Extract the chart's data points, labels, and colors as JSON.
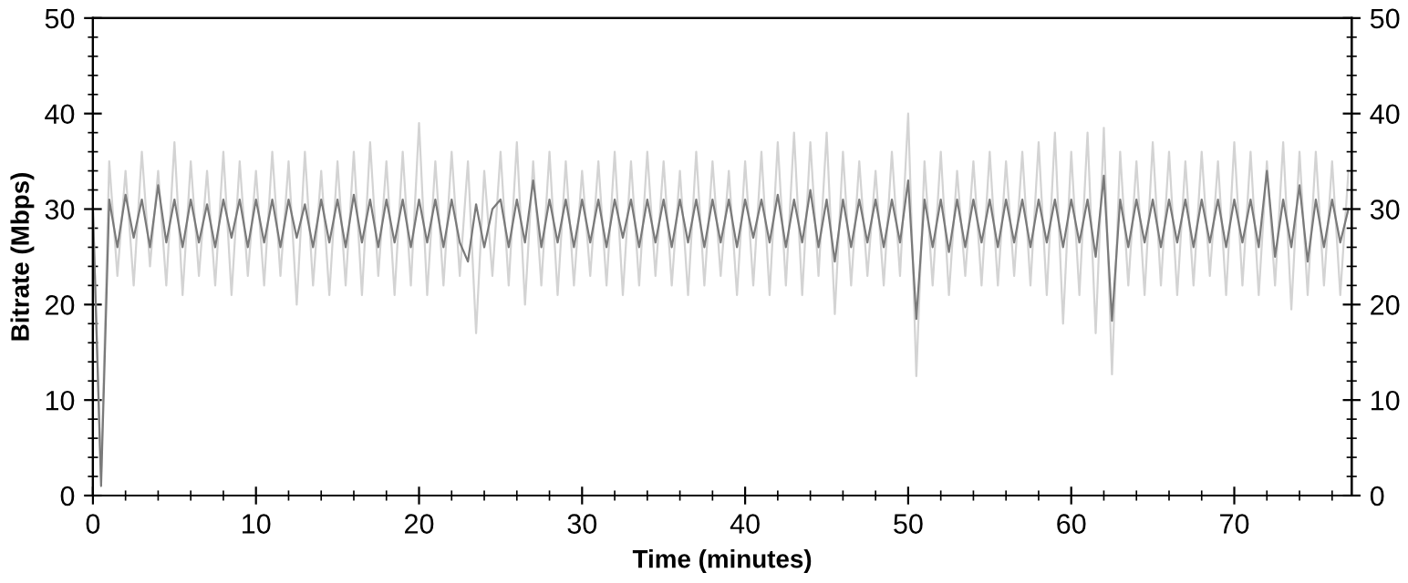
{
  "chart_data": {
    "type": "line",
    "xlabel": "Time (minutes)",
    "ylabel": "Bitrate (Mbps)",
    "x": [
      0,
      0.5,
      1,
      1.5,
      2,
      2.5,
      3,
      3.5,
      4,
      4.5,
      5,
      5.5,
      6,
      6.5,
      7,
      7.5,
      8,
      8.5,
      9,
      9.5,
      10,
      10.5,
      11,
      11.5,
      12,
      12.5,
      13,
      13.5,
      14,
      14.5,
      15,
      15.5,
      16,
      16.5,
      17,
      17.5,
      18,
      18.5,
      19,
      19.5,
      20,
      20.5,
      21,
      21.5,
      22,
      22.5,
      23,
      23.5,
      24,
      24.5,
      25,
      25.5,
      26,
      26.5,
      27,
      27.5,
      28,
      28.5,
      29,
      29.5,
      30,
      30.5,
      31,
      31.5,
      32,
      32.5,
      33,
      33.5,
      34,
      34.5,
      35,
      35.5,
      36,
      36.5,
      37,
      37.5,
      38,
      38.5,
      39,
      39.5,
      40,
      40.5,
      41,
      41.5,
      42,
      42.5,
      43,
      43.5,
      44,
      44.5,
      45,
      45.5,
      46,
      46.5,
      47,
      47.5,
      48,
      48.5,
      49,
      49.5,
      50,
      50.5,
      51,
      51.5,
      52,
      52.5,
      53,
      53.5,
      54,
      54.5,
      55,
      55.5,
      56,
      56.5,
      57,
      57.5,
      58,
      58.5,
      59,
      59.5,
      60,
      60.5,
      61,
      61.5,
      62,
      62.5,
      63,
      63.5,
      64,
      64.5,
      65,
      65.5,
      66,
      66.5,
      67,
      67.5,
      68,
      68.5,
      69,
      69.5,
      70,
      70.5,
      71,
      71.5,
      72,
      72.5,
      73,
      73.5,
      74,
      74.5,
      75,
      75.5,
      76,
      76.5,
      77
    ],
    "series": [
      {
        "color": "#d3d3d3",
        "values": [
          30,
          2,
          35,
          23,
          34,
          22,
          36,
          24,
          34,
          22,
          37,
          21,
          35,
          23,
          34,
          22,
          36,
          21,
          35,
          23,
          34,
          22,
          36,
          23,
          35,
          20,
          36,
          22,
          34,
          21,
          35,
          22,
          36,
          21,
          37,
          23,
          35,
          21,
          36,
          22,
          39,
          21,
          35,
          22,
          36,
          23,
          35,
          17,
          34,
          23,
          36,
          22,
          37,
          20,
          35,
          22,
          36,
          21,
          35,
          22,
          34,
          23,
          35,
          22,
          36,
          21,
          35,
          22,
          36,
          23,
          35,
          22,
          34,
          21,
          36,
          22,
          35,
          23,
          34,
          21,
          35,
          22,
          36,
          21,
          37,
          22,
          38,
          21,
          37,
          23,
          38,
          19,
          36,
          22,
          35,
          23,
          34,
          22,
          36,
          23,
          40,
          12.5,
          35,
          22,
          36,
          21,
          34,
          23,
          35,
          22,
          36,
          22,
          35,
          23,
          36,
          22,
          37,
          21,
          38,
          18,
          36,
          21,
          38,
          17,
          38.5,
          12.7,
          36,
          22,
          35,
          21,
          37,
          22,
          36,
          21,
          35,
          22,
          36,
          23,
          35,
          21,
          37,
          22,
          36,
          21,
          35,
          22,
          37,
          19.5,
          36,
          21,
          36,
          22,
          35,
          21,
          34
        ]
      },
      {
        "color": "#7a7a7a",
        "values": [
          30,
          1,
          31,
          26,
          31.5,
          27,
          31,
          26,
          32.5,
          26.5,
          31,
          26,
          31,
          26.5,
          30.5,
          26,
          31,
          27,
          31,
          26,
          31,
          26.5,
          31,
          26,
          31,
          27,
          30.5,
          26,
          31,
          26.5,
          31,
          26,
          31.5,
          26.5,
          31,
          26,
          31,
          26.5,
          31,
          26,
          31,
          26.5,
          31,
          26,
          31,
          26.5,
          24.5,
          30.5,
          26,
          30,
          31,
          26,
          31,
          26.5,
          33,
          26,
          31,
          26.5,
          31,
          26,
          31,
          26.5,
          31,
          26,
          31,
          27,
          31,
          26,
          31,
          26.5,
          31,
          26,
          31,
          26.5,
          31,
          26,
          31,
          26.5,
          31,
          26,
          31,
          27,
          31,
          26.5,
          31.5,
          26,
          31,
          26.5,
          32,
          26,
          31,
          24.5,
          31,
          26,
          31,
          26.5,
          31,
          26,
          31,
          26.5,
          33,
          18.5,
          31,
          26,
          31,
          25.5,
          31,
          26,
          31,
          26.5,
          31,
          26,
          31,
          26.5,
          31,
          26,
          31,
          26.5,
          31,
          26,
          31,
          26.5,
          31,
          25,
          33.5,
          18.3,
          31,
          26,
          31,
          26.5,
          31,
          26,
          31,
          26.5,
          31,
          26,
          31,
          26.5,
          31,
          26,
          31,
          26.5,
          31,
          26,
          34,
          25,
          31,
          26,
          32.5,
          24.5,
          31,
          26,
          31,
          26.5,
          30
        ]
      }
    ],
    "xlim": [
      0,
      77.2
    ],
    "xticks": [
      0,
      10,
      20,
      30,
      40,
      50,
      60,
      70
    ],
    "ylim": [
      0,
      50
    ],
    "yticks": [
      0,
      10,
      20,
      30,
      40,
      50
    ],
    "y2lim": [
      0,
      50
    ],
    "y2ticks": [
      0,
      10,
      20,
      30,
      40,
      50
    ],
    "grid": false,
    "marker": "none",
    "line_style": "solid"
  }
}
